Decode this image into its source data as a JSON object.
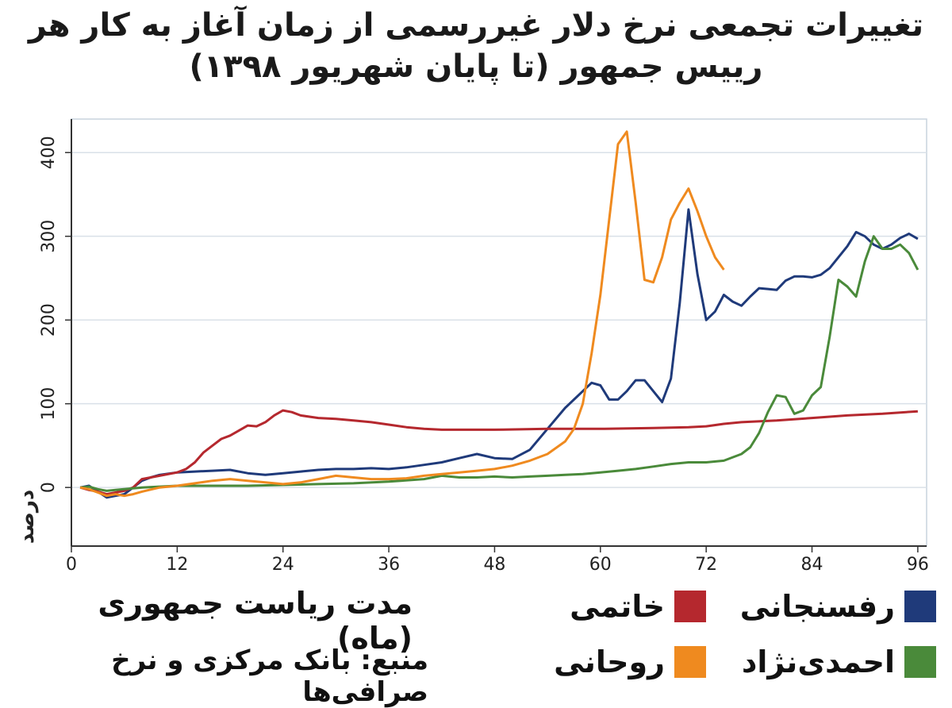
{
  "chart_data": {
    "type": "line",
    "title": "تغییرات تجمعی نرخ دلار غیررسمی از زمان آغاز به کار هر رییس جمهور (تا پایان شهریور ۱۳۹۸)",
    "xlabel": "مدت ریاست جمهوری (ماه)",
    "ylabel": "درصد",
    "source": "منبع: بانک مرکزی و نرخ صرافی‌ها",
    "xlim": [
      0,
      97
    ],
    "ylim": [
      -70,
      440
    ],
    "xticks": [
      0,
      12,
      24,
      36,
      48,
      60,
      72,
      84,
      96
    ],
    "yticks": [
      0,
      100,
      200,
      300,
      400
    ],
    "grid": true,
    "legend_position": "bottom",
    "series": [
      {
        "name": "رفسنجانی",
        "color": "#1f3a7a",
        "x": [
          1,
          2,
          3,
          4,
          5,
          6,
          7,
          8,
          9,
          10,
          12,
          14,
          16,
          18,
          20,
          22,
          24,
          26,
          28,
          30,
          32,
          34,
          36,
          38,
          40,
          42,
          44,
          46,
          48,
          50,
          52,
          54,
          56,
          57,
          58,
          59,
          60,
          61,
          62,
          63,
          64,
          65,
          66,
          67,
          68,
          69,
          70,
          71,
          72,
          73,
          74,
          75,
          76,
          77,
          78,
          79,
          80,
          81,
          82,
          83,
          84,
          85,
          86,
          87,
          88,
          89,
          90,
          91,
          92,
          93,
          94,
          95,
          96
        ],
        "y": [
          0,
          2,
          -5,
          -12,
          -10,
          -8,
          0,
          8,
          12,
          15,
          18,
          19,
          20,
          21,
          17,
          15,
          17,
          19,
          21,
          22,
          22,
          23,
          22,
          24,
          27,
          30,
          35,
          40,
          35,
          34,
          45,
          70,
          95,
          105,
          115,
          125,
          122,
          105,
          105,
          115,
          128,
          128,
          115,
          102,
          130,
          220,
          332,
          255,
          200,
          210,
          230,
          222,
          217,
          228,
          238,
          237,
          236,
          247,
          252,
          252,
          251,
          254,
          262,
          275,
          288,
          305,
          300,
          290,
          285,
          290,
          298,
          303,
          297
        ]
      },
      {
        "name": "خاتمی",
        "color": "#b5282e",
        "x": [
          1,
          2,
          3,
          4,
          5,
          6,
          7,
          8,
          10,
          12,
          13,
          14,
          15,
          16,
          17,
          18,
          19,
          20,
          21,
          22,
          23,
          24,
          25,
          26,
          28,
          30,
          32,
          34,
          36,
          38,
          40,
          42,
          48,
          54,
          60,
          66,
          70,
          72,
          74,
          76,
          80,
          84,
          88,
          92,
          96
        ],
        "y": [
          0,
          -3,
          -5,
          -8,
          -6,
          -4,
          0,
          10,
          14,
          18,
          22,
          30,
          42,
          50,
          58,
          62,
          68,
          74,
          73,
          78,
          86,
          92,
          90,
          86,
          83,
          82,
          80,
          78,
          75,
          72,
          70,
          69,
          69,
          70,
          70,
          71,
          72,
          73,
          76,
          78,
          80,
          83,
          86,
          88,
          91
        ]
      },
      {
        "name": "احمدی‌نژاد",
        "color": "#4a8a3a",
        "x": [
          1,
          2,
          3,
          4,
          5,
          6,
          8,
          10,
          12,
          16,
          20,
          24,
          28,
          32,
          36,
          40,
          42,
          44,
          46,
          48,
          50,
          52,
          54,
          56,
          58,
          60,
          62,
          64,
          66,
          68,
          70,
          72,
          74,
          76,
          77,
          78,
          79,
          80,
          81,
          82,
          83,
          84,
          85,
          86,
          87,
          88,
          89,
          90,
          91,
          92,
          93,
          94,
          95,
          96
        ],
        "y": [
          0,
          1,
          -2,
          -4,
          -3,
          -2,
          0,
          1,
          2,
          2,
          2,
          3,
          4,
          5,
          7,
          10,
          14,
          12,
          12,
          13,
          12,
          13,
          14,
          15,
          16,
          18,
          20,
          22,
          25,
          28,
          30,
          30,
          32,
          40,
          48,
          65,
          90,
          110,
          108,
          88,
          92,
          110,
          120,
          180,
          248,
          240,
          228,
          270,
          300,
          285,
          285,
          290,
          280,
          260
        ]
      },
      {
        "name": "روحانی",
        "color": "#ef8a1f",
        "x": [
          1,
          2,
          3,
          4,
          5,
          6,
          7,
          8,
          10,
          12,
          14,
          16,
          18,
          20,
          22,
          24,
          26,
          28,
          30,
          32,
          34,
          36,
          38,
          40,
          42,
          44,
          46,
          48,
          50,
          52,
          54,
          56,
          57,
          58,
          59,
          60,
          61,
          62,
          63,
          64,
          65,
          66,
          67,
          68,
          69,
          70,
          71,
          72,
          73,
          74
        ],
        "y": [
          0,
          -2,
          -6,
          -10,
          -8,
          -10,
          -8,
          -5,
          0,
          2,
          5,
          8,
          10,
          8,
          6,
          4,
          6,
          10,
          14,
          12,
          10,
          10,
          11,
          14,
          16,
          18,
          20,
          22,
          26,
          32,
          40,
          55,
          70,
          100,
          160,
          230,
          320,
          410,
          425,
          340,
          248,
          245,
          275,
          320,
          340,
          357,
          330,
          300,
          275,
          260
        ]
      }
    ]
  }
}
